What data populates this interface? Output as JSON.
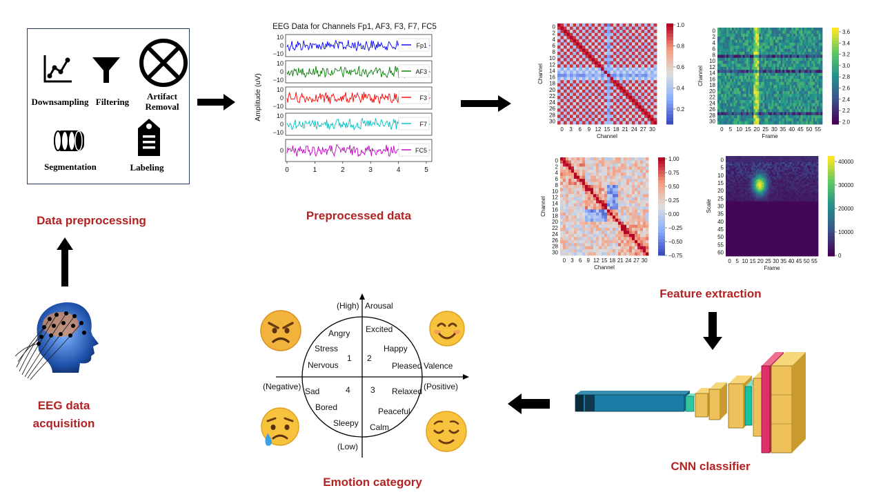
{
  "stages": {
    "preprocessing": "Data preprocessing",
    "preprocessed": "Preprocessed data",
    "features": "Feature extraction",
    "classifier": "CNN classifier",
    "emotion": "Emotion category",
    "acquisition_line1": "EEG data",
    "acquisition_line2": "acquisition"
  },
  "preproc_steps": {
    "downsampling": "Downsampling",
    "filtering": "Filtering",
    "artifact_line1": "Artifact",
    "artifact_line2": "Removal",
    "segmentation": "Segmentation",
    "labeling": "Labeling"
  },
  "eeg_plot": {
    "title": "EEG Data for Channels Fp1, AF3, F3, F7, FC5",
    "ylabel": "Amplitude (uV)",
    "channels": [
      {
        "name": "Fp1",
        "color": "#0000ff"
      },
      {
        "name": "AF3",
        "color": "#008000"
      },
      {
        "name": "F3",
        "color": "#ff0000"
      },
      {
        "name": "F7",
        "color": "#00bfbf"
      },
      {
        "name": "FC5",
        "color": "#bf00bf"
      }
    ],
    "yticks": [
      "10",
      "0",
      "−10"
    ],
    "xticks": [
      "0",
      "1",
      "2",
      "3",
      "4",
      "5"
    ]
  },
  "feature_maps": {
    "channel_ticks": [
      "0",
      "2",
      "4",
      "6",
      "8",
      "10",
      "12",
      "14",
      "16",
      "18",
      "20",
      "22",
      "24",
      "26",
      "28",
      "30"
    ],
    "channel_xticks": [
      "0",
      "3",
      "6",
      "9",
      "12",
      "15",
      "18",
      "21",
      "24",
      "27",
      "30"
    ],
    "frame_ticks": [
      "0",
      "5",
      "10",
      "15",
      "20",
      "25",
      "30",
      "35",
      "40",
      "45",
      "50",
      "55"
    ],
    "scale_ticks": [
      "0",
      "5",
      "10",
      "15",
      "20",
      "25",
      "30",
      "35",
      "40",
      "45",
      "50",
      "55",
      "60"
    ],
    "axis_channel": "Channel",
    "axis_frame": "Frame",
    "axis_scale": "Scale",
    "cbar1": [
      "1.0",
      "0.8",
      "0.6",
      "0.4",
      "0.2"
    ],
    "cbar2": [
      "3.6",
      "3.4",
      "3.2",
      "3.0",
      "2.8",
      "2.6",
      "2.4",
      "2.2",
      "2.0"
    ],
    "cbar3": [
      "1.00",
      "0.75",
      "0.50",
      "0.25",
      "0.00",
      "−0.25",
      "−0.50",
      "−0.75"
    ],
    "cbar4": [
      "40000",
      "30000",
      "20000",
      "10000",
      "0"
    ]
  },
  "emotion_model": {
    "high": "(High)",
    "arousal": "Arousal",
    "low": "(Low)",
    "negative": "(Negative)",
    "positive": "(Positive)",
    "valence": "Valence",
    "q1": "1",
    "q2": "2",
    "q3": "3",
    "q4": "4",
    "words_q1": [
      "Angry",
      "Stress",
      "Nervous"
    ],
    "words_q2": [
      "Excited",
      "Happy",
      "Pleased"
    ],
    "words_q4": [
      "Sad",
      "Bored",
      "Sleepy"
    ],
    "words_q3": [
      "Relaxed",
      "Peaceful",
      "Calm"
    ]
  },
  "colors": {
    "title_red": "#b22222",
    "box_border": "#1f3864",
    "arrow": "#000000"
  }
}
